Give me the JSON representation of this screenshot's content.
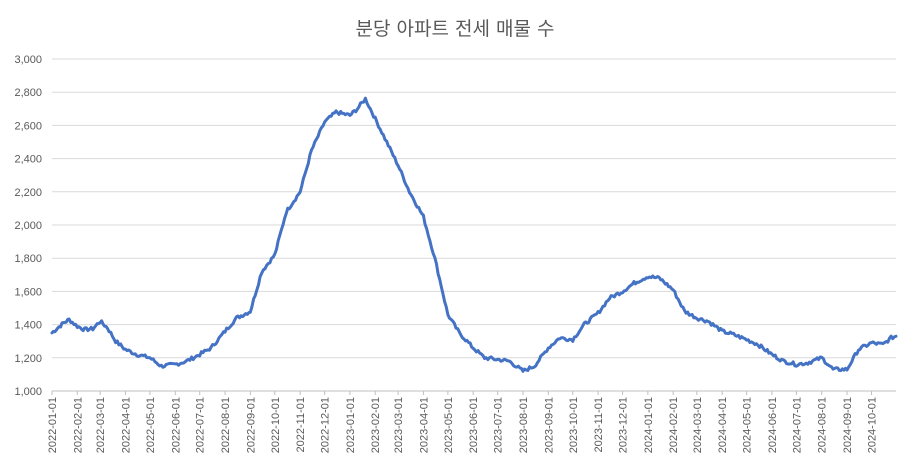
{
  "chart_data": {
    "type": "line",
    "title": "분당 아파트 전세 매물 수",
    "xlabel": "",
    "ylabel": "",
    "ylim": [
      1000,
      3000
    ],
    "yticks": [
      1000,
      1200,
      1400,
      1600,
      1800,
      2000,
      2200,
      2400,
      2600,
      2800,
      3000
    ],
    "ytick_labels": [
      "1,000",
      "1,200",
      "1,400",
      "1,600",
      "1,800",
      "2,000",
      "2,200",
      "2,400",
      "2,600",
      "2,800",
      "3,000"
    ],
    "xlim": [
      "2022-01-01",
      "2024-10-31"
    ],
    "xtick_labels": [
      "2022-01-01",
      "2022-02-01",
      "2022-03-01",
      "2022-04-01",
      "2022-05-01",
      "2022-06-01",
      "2022-07-01",
      "2022-08-01",
      "2022-09-01",
      "2022-10-01",
      "2022-11-01",
      "2022-12-01",
      "2023-01-01",
      "2023-02-01",
      "2023-03-01",
      "2023-04-01",
      "2023-05-01",
      "2023-06-01",
      "2023-07-01",
      "2023-08-01",
      "2023-09-01",
      "2023-10-01",
      "2023-11-01",
      "2023-12-01",
      "2024-01-01",
      "2024-02-01",
      "2024-03-01",
      "2024-04-01",
      "2024-05-01",
      "2024-06-01",
      "2024-07-01",
      "2024-08-01",
      "2024-09-01",
      "2024-10-01"
    ],
    "grid": true,
    "legend": "none",
    "color": "#4472c4",
    "series": [
      {
        "x": [
          "2022-01-01",
          "2022-01-08",
          "2022-01-15",
          "2022-01-22",
          "2022-02-01",
          "2022-02-10",
          "2022-02-20",
          "2022-03-01",
          "2022-03-10",
          "2022-03-20",
          "2022-04-01",
          "2022-04-15",
          "2022-05-01",
          "2022-05-15",
          "2022-06-01",
          "2022-06-15",
          "2022-07-01",
          "2022-07-15",
          "2022-08-01",
          "2022-08-15",
          "2022-09-01",
          "2022-09-15",
          "2022-10-01",
          "2022-10-15",
          "2022-11-01",
          "2022-11-15",
          "2022-12-01",
          "2022-12-15",
          "2023-01-01",
          "2023-01-10",
          "2023-01-20",
          "2023-02-01",
          "2023-02-15",
          "2023-03-01",
          "2023-03-15",
          "2023-04-01",
          "2023-04-15",
          "2023-05-01",
          "2023-05-15",
          "2023-06-01",
          "2023-06-15",
          "2023-07-01",
          "2023-07-15",
          "2023-08-01",
          "2023-08-15",
          "2023-09-01",
          "2023-09-15",
          "2023-10-01",
          "2023-10-15",
          "2023-11-01",
          "2023-11-15",
          "2023-12-01",
          "2023-12-15",
          "2024-01-01",
          "2024-01-15",
          "2024-02-01",
          "2024-02-15",
          "2024-03-01",
          "2024-03-15",
          "2024-04-01",
          "2024-04-15",
          "2024-05-01",
          "2024-05-15",
          "2024-06-01",
          "2024-06-15",
          "2024-07-01",
          "2024-07-15",
          "2024-08-01",
          "2024-08-15",
          "2024-09-01",
          "2024-09-15",
          "2024-10-01",
          "2024-10-15",
          "2024-10-25",
          "2024-10-31"
        ],
        "values": [
          1350,
          1380,
          1410,
          1430,
          1390,
          1370,
          1375,
          1420,
          1380,
          1300,
          1250,
          1220,
          1200,
          1150,
          1160,
          1180,
          1220,
          1260,
          1360,
          1440,
          1480,
          1720,
          1820,
          2080,
          2200,
          2450,
          2620,
          2680,
          2660,
          2700,
          2760,
          2640,
          2500,
          2360,
          2200,
          2050,
          1800,
          1460,
          1350,
          1260,
          1200,
          1190,
          1180,
          1120,
          1150,
          1260,
          1320,
          1310,
          1400,
          1470,
          1560,
          1600,
          1650,
          1690,
          1680,
          1610,
          1480,
          1440,
          1420,
          1360,
          1340,
          1310,
          1280,
          1220,
          1180,
          1160,
          1170,
          1200,
          1130,
          1130,
          1250,
          1290,
          1280,
          1320,
          1330
        ]
      }
    ]
  }
}
